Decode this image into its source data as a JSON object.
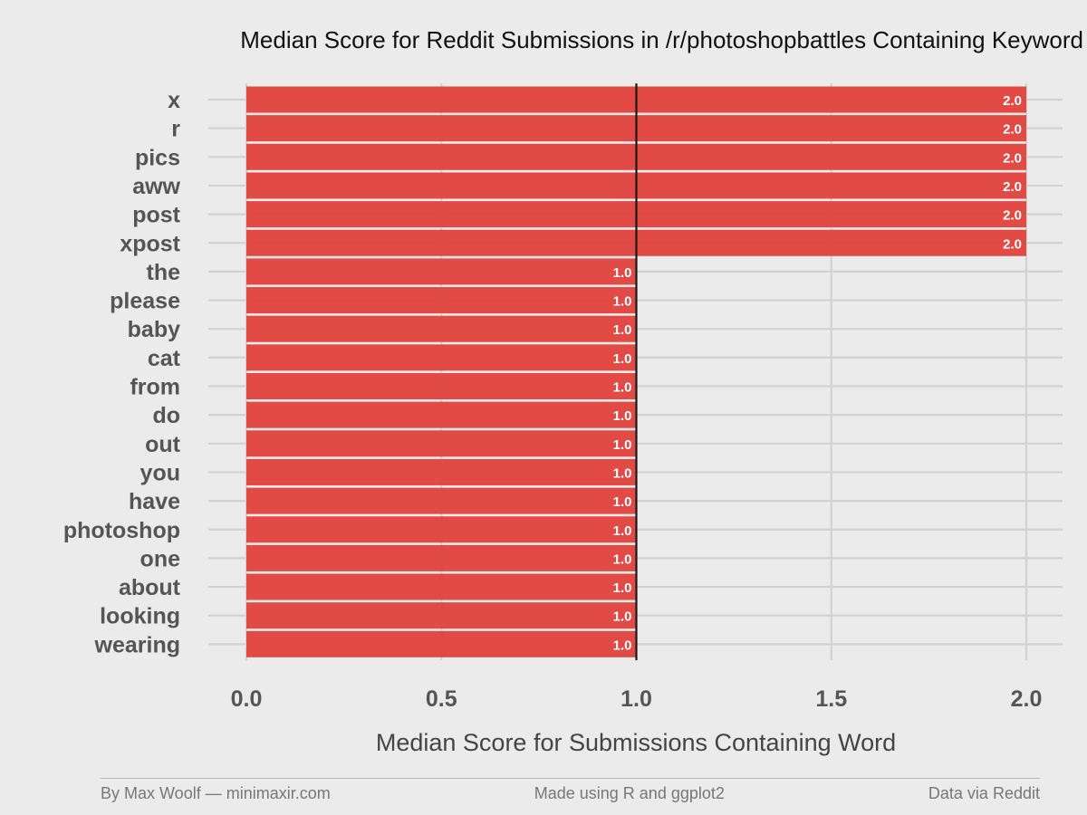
{
  "chart_data": {
    "type": "bar",
    "orientation": "horizontal",
    "title": "Median Score for Reddit Submissions in /r/photoshopbattles Containing Keyword",
    "xlabel": "Median Score for Submissions Containing Word",
    "ylabel": "",
    "categories": [
      "x",
      "r",
      "pics",
      "aww",
      "post",
      "xpost",
      "the",
      "please",
      "baby",
      "cat",
      "from",
      "do",
      "out",
      "you",
      "have",
      "photoshop",
      "one",
      "about",
      "looking",
      "wearing"
    ],
    "values": [
      2.0,
      2.0,
      2.0,
      2.0,
      2.0,
      2.0,
      1.0,
      1.0,
      1.0,
      1.0,
      1.0,
      1.0,
      1.0,
      1.0,
      1.0,
      1.0,
      1.0,
      1.0,
      1.0,
      1.0
    ],
    "value_labels": [
      "2.0",
      "2.0",
      "2.0",
      "2.0",
      "2.0",
      "2.0",
      "1.0",
      "1.0",
      "1.0",
      "1.0",
      "1.0",
      "1.0",
      "1.0",
      "1.0",
      "1.0",
      "1.0",
      "1.0",
      "1.0",
      "1.0",
      "1.0"
    ],
    "xlim": [
      0,
      2
    ],
    "xticks": [
      0,
      0.5,
      1.0,
      1.5,
      2.0
    ],
    "xtick_labels": [
      "0.0",
      "0.5",
      "1.0",
      "1.5",
      "2.0"
    ],
    "reference_line": 1.0,
    "grid": true,
    "bar_color": "#e0413c"
  },
  "footer": {
    "left": "By Max Woolf — minimaxir.com",
    "center": "Made using R and ggplot2",
    "right": "Data via Reddit"
  }
}
